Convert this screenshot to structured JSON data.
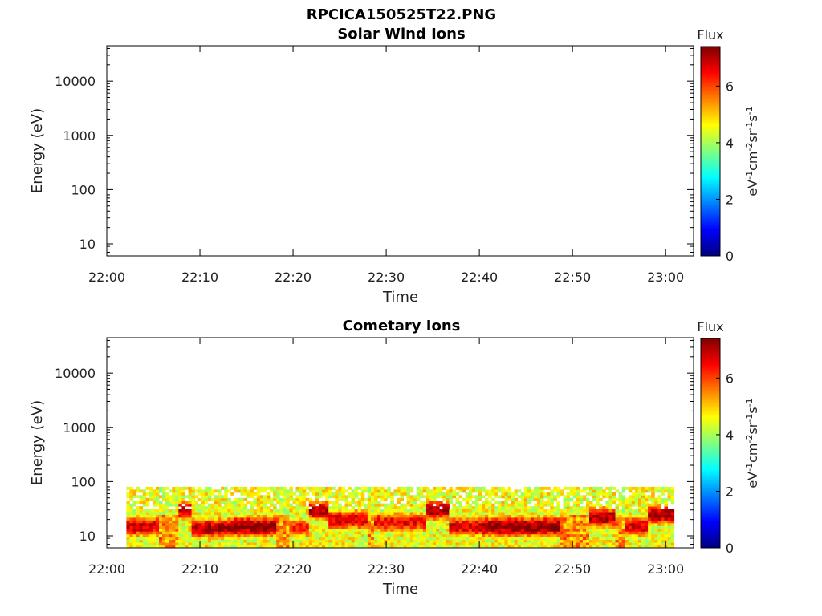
{
  "figure_title": "RPCICA150525T22.PNG",
  "colormap": [
    "#00007f",
    "#0000ff",
    "#0080ff",
    "#00ffff",
    "#80ff80",
    "#ffff00",
    "#ff8000",
    "#ff0000",
    "#7f0000"
  ],
  "chart_data": [
    {
      "type": "heatmap",
      "title": "Solar Wind Ions",
      "xlabel": "Time",
      "ylabel": "Energy (eV)",
      "x_ticks": [
        "22:00",
        "22:10",
        "22:20",
        "22:30",
        "22:40",
        "22:50",
        "23:00"
      ],
      "xlim_minutes": [
        0,
        63
      ],
      "y_scale": "log",
      "ylim": [
        6,
        45000
      ],
      "y_ticks": [
        10,
        100,
        1000,
        10000
      ],
      "y_tick_labels": [
        "10",
        "100",
        "1000",
        "10000"
      ],
      "colorbar": {
        "title": "Flux",
        "label": "eV-1cm-2sr-1s-1",
        "range": [
          0,
          7.4
        ],
        "ticks": [
          "0",
          "2",
          "4",
          "6"
        ]
      },
      "grid": false,
      "bands": []
    },
    {
      "type": "heatmap",
      "title": "Cometary Ions",
      "xlabel": "Time",
      "ylabel": "Energy (eV)",
      "x_ticks": [
        "22:00",
        "22:10",
        "22:20",
        "22:30",
        "22:40",
        "22:50",
        "23:00"
      ],
      "xlim_minutes": [
        0,
        63
      ],
      "y_scale": "log",
      "ylim": [
        6,
        45000
      ],
      "y_ticks": [
        10,
        100,
        1000,
        10000
      ],
      "y_tick_labels": [
        "10",
        "100",
        "1000",
        "10000"
      ],
      "colorbar": {
        "title": "Flux",
        "label": "eV-1cm-2sr-1s-1",
        "range": [
          0,
          7.4
        ],
        "ticks": [
          "0",
          "2",
          "4",
          "6"
        ]
      },
      "grid": false,
      "data_extent_minutes": [
        2.1,
        60.6
      ],
      "data_energy_range_eV": [
        6,
        80
      ],
      "bands": [
        {
          "t0": 2.1,
          "t1": 5.5,
          "peak_energy": 15,
          "intensity": 6.5
        },
        {
          "t0": 7.5,
          "t1": 9.0,
          "peak_energy": 30,
          "intensity": 6.5
        },
        {
          "t0": 9.0,
          "t1": 13.5,
          "peak_energy": 14,
          "intensity": 6.8
        },
        {
          "t0": 13.5,
          "t1": 18.0,
          "peak_energy": 15,
          "intensity": 7.0
        },
        {
          "t0": 19.5,
          "t1": 21.5,
          "peak_energy": 14,
          "intensity": 6.0
        },
        {
          "t0": 21.0,
          "t1": 23.8,
          "peak_energy": 30,
          "intensity": 6.8
        },
        {
          "t0": 23.8,
          "t1": 28.0,
          "peak_energy": 20,
          "intensity": 6.5
        },
        {
          "t0": 28.5,
          "t1": 34.0,
          "peak_energy": 18,
          "intensity": 6.3
        },
        {
          "t0": 34.0,
          "t1": 36.5,
          "peak_energy": 30,
          "intensity": 6.8
        },
        {
          "t0": 36.5,
          "t1": 40.0,
          "peak_energy": 15,
          "intensity": 6.5
        },
        {
          "t0": 40.0,
          "t1": 48.5,
          "peak_energy": 15,
          "intensity": 7.0
        },
        {
          "t0": 51.5,
          "t1": 54.5,
          "peak_energy": 22,
          "intensity": 6.8
        },
        {
          "t0": 55.5,
          "t1": 58.0,
          "peak_energy": 15,
          "intensity": 6.5
        },
        {
          "t0": 58.0,
          "t1": 60.6,
          "peak_energy": 25,
          "intensity": 6.8
        }
      ]
    }
  ]
}
